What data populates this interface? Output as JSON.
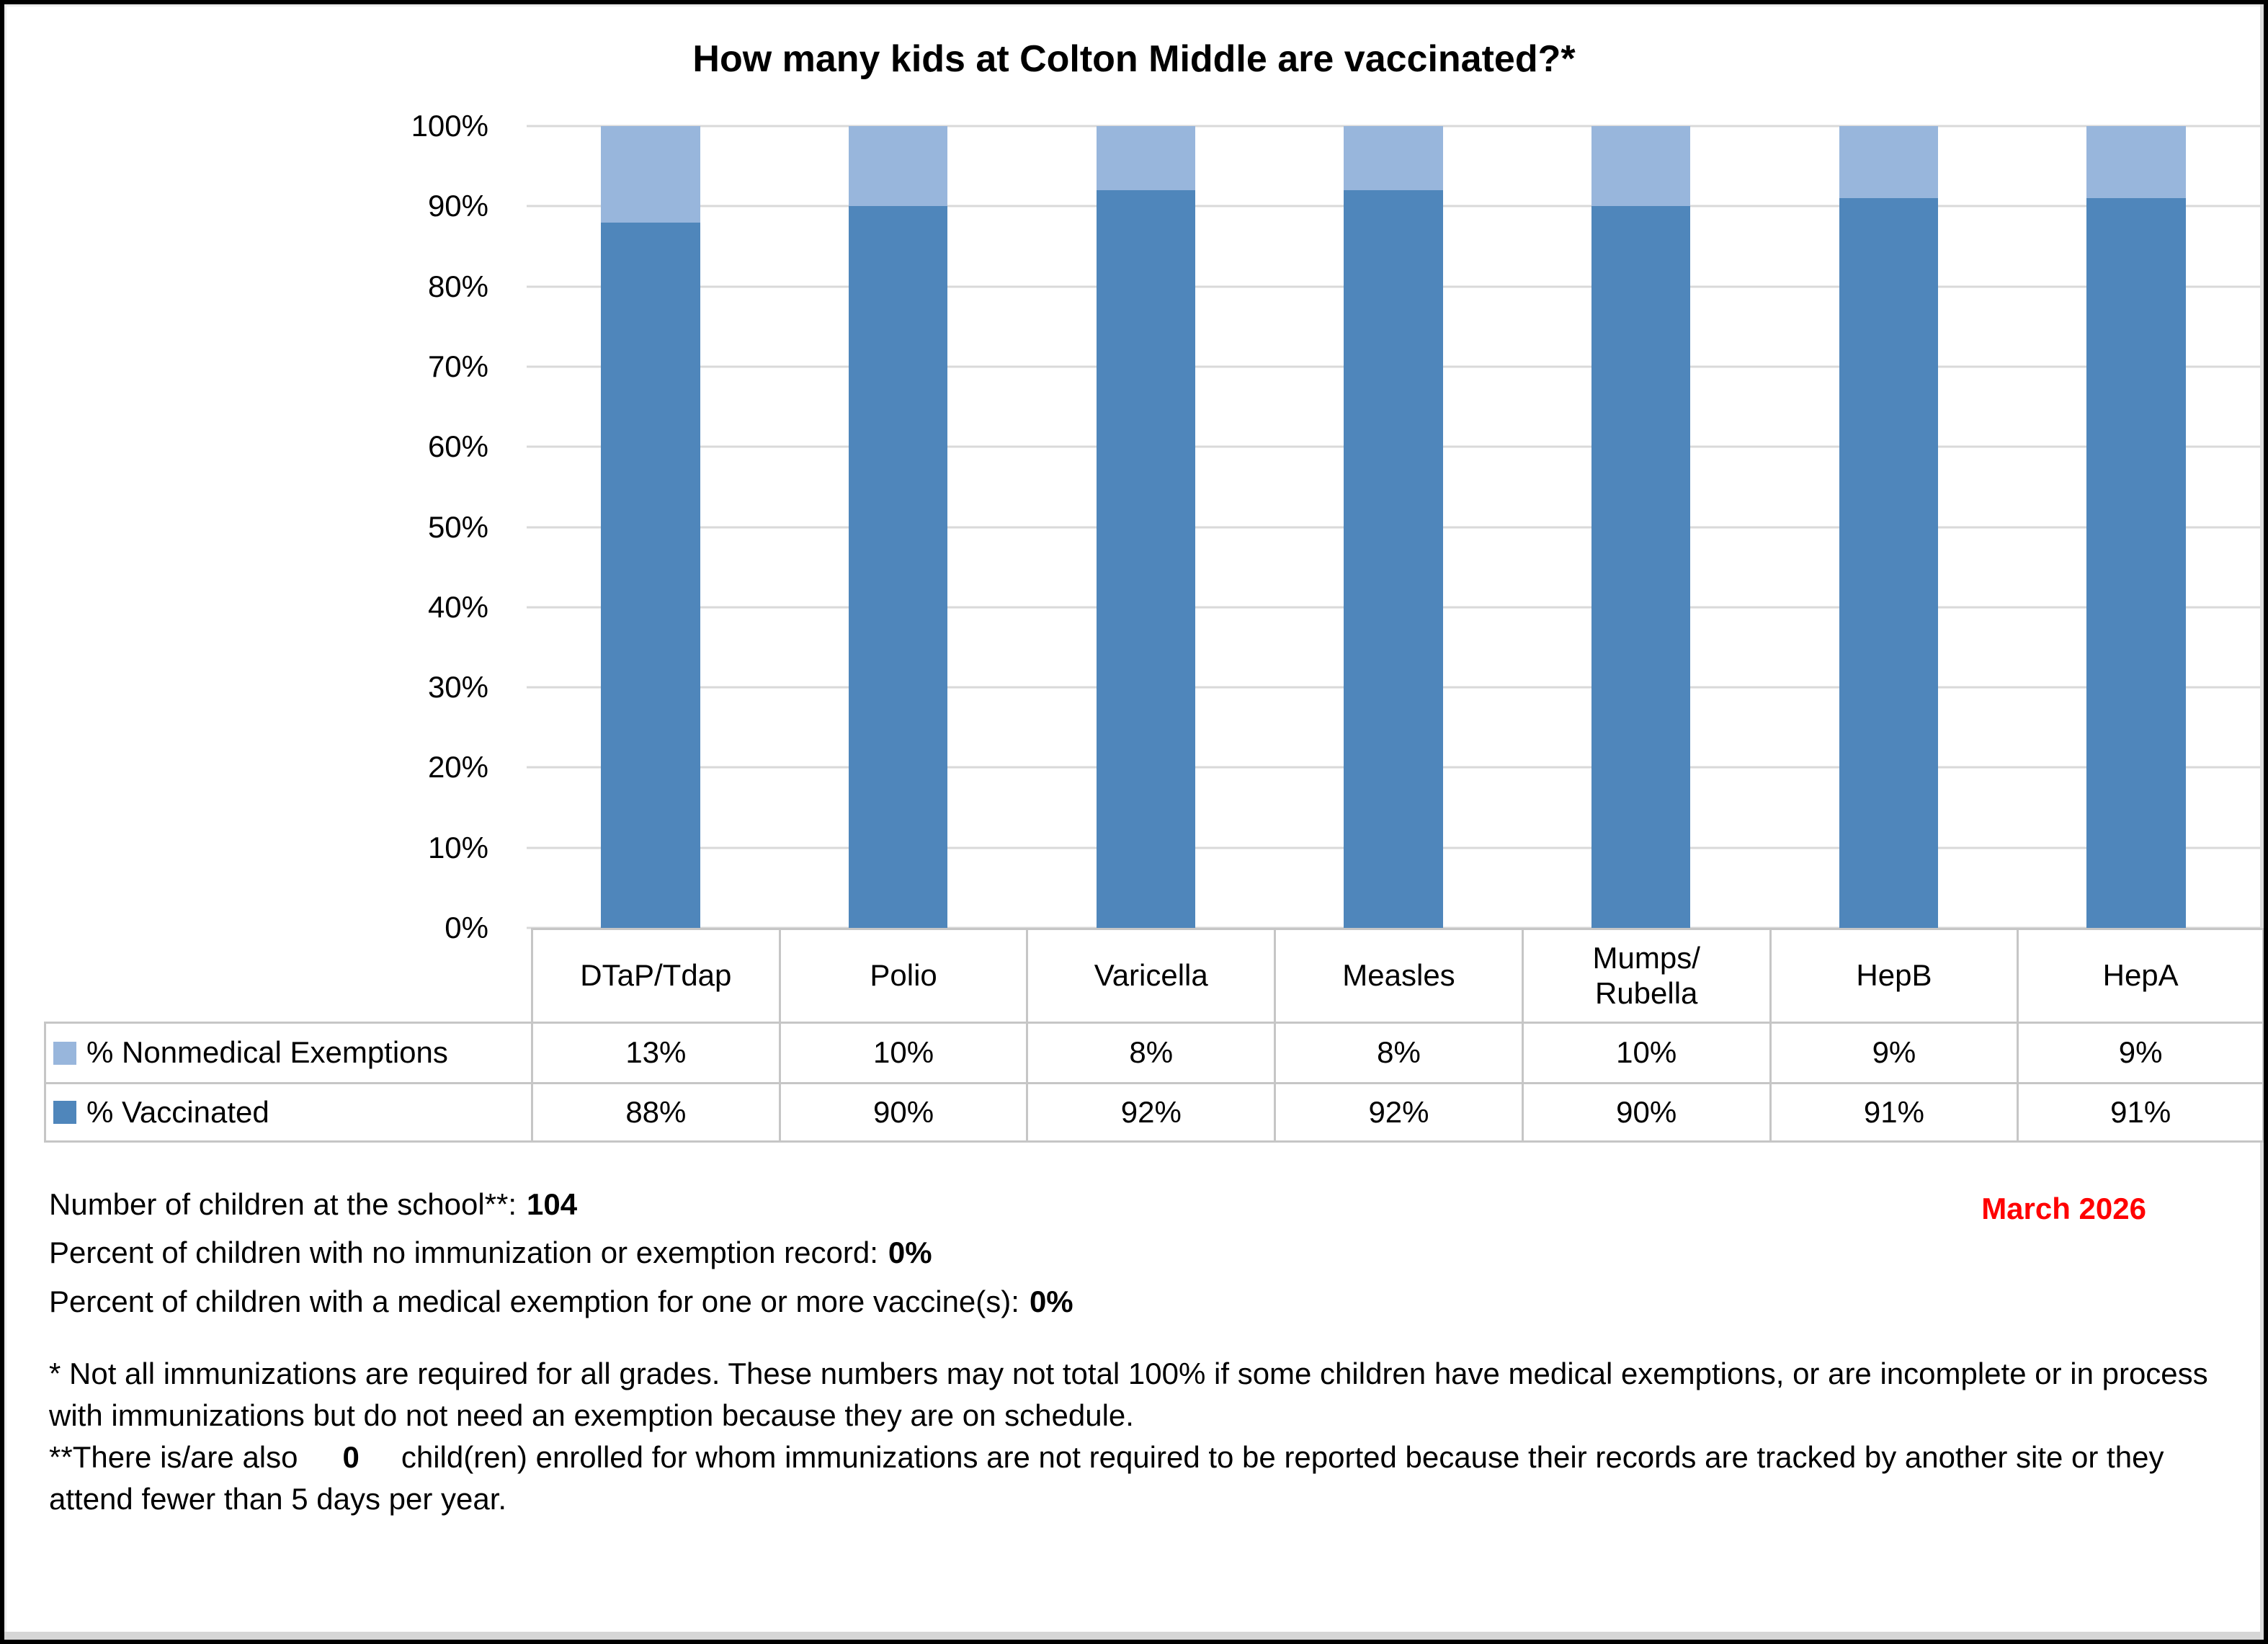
{
  "colors": {
    "vaccinated": "#4F86BB",
    "nonmedical": "#98B6DC",
    "gridline": "#D9D9D9",
    "table_border": "#C6C6C6",
    "date_red": "#FF0000"
  },
  "chart_data": {
    "type": "bar",
    "stacked": true,
    "title": "How many kids at Colton Middle are vaccinated?*",
    "categories": [
      "DTaP/Tdap",
      "Polio",
      "Varicella",
      "Measles",
      "Mumps/\nRubella",
      "HepB",
      "HepA"
    ],
    "series": [
      {
        "name": "% Nonmedical Exemptions",
        "key": "nonmedical",
        "values": [
          13,
          10,
          8,
          8,
          10,
          9,
          9
        ]
      },
      {
        "name": "% Vaccinated",
        "key": "vaccinated",
        "values": [
          88,
          90,
          92,
          92,
          90,
          91,
          91
        ]
      }
    ],
    "value_suffix": "%",
    "y_ticks": [
      "100%",
      "90%",
      "80%",
      "70%",
      "60%",
      "50%",
      "40%",
      "30%",
      "20%",
      "10%",
      "0%"
    ],
    "ylim": [
      0,
      100
    ],
    "grid": true,
    "legend_position": "table-left"
  },
  "info_lines": [
    {
      "label": "Number of children at the school**:",
      "value": "104"
    },
    {
      "label": "Percent of children with no immunization or exemption record:",
      "value": "0%"
    },
    {
      "label": "Percent of children with a medical exemption for one or more vaccine(s):",
      "value": "0%"
    }
  ],
  "date_label": "March 2026",
  "footnotes": [
    {
      "text": "* Not all immunizations are required for all grades. These numbers may not total 100% if some children have medical exemptions, or are incomplete or in process with immunizations but do not need an exemption because they are on schedule."
    },
    {
      "pre": "**There is/are also",
      "bold": "0",
      "post": "child(ren) enrolled for whom immunizations are not required to be reported because their records are tracked by another site or they attend fewer than 5 days per year."
    }
  ]
}
